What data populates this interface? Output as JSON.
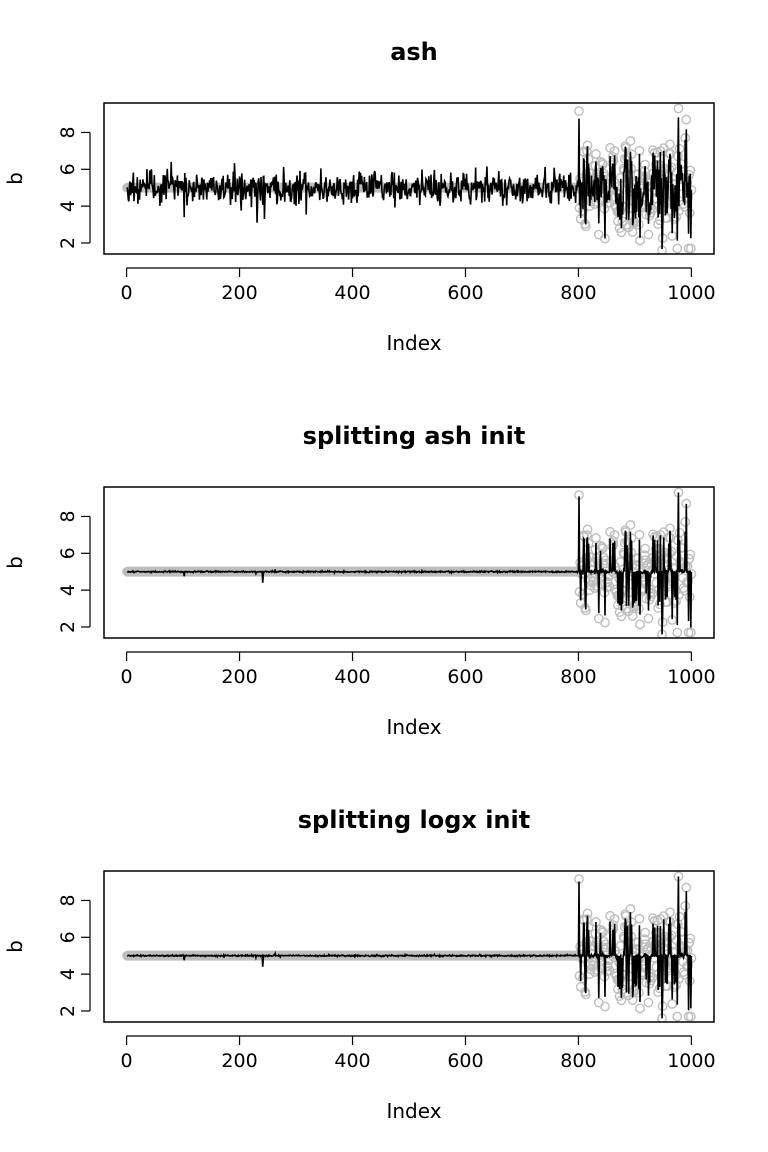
{
  "chart_data": [
    {
      "type": "scatter",
      "title": "ash",
      "xlabel": "Index",
      "ylabel": "b",
      "xlim": [
        -40,
        1040
      ],
      "ylim": [
        1.4,
        9.6
      ],
      "xticks": [
        "0",
        "200",
        "400",
        "600",
        "800",
        "1000"
      ],
      "yticks": [
        "2",
        "4",
        "6",
        "8"
      ],
      "n_points": 1000,
      "series": [
        {
          "name": "",
          "kind": "points",
          "color": "#bebebe",
          "description": "observed values: constant 5 for index 1-800, noisy between 1.7 and 9.3 for index 801-1000"
        },
        {
          "name": "",
          "kind": "line",
          "color": "#000000",
          "description": "noisy estimate around 5 (approx 3.1-6.4) for index 1-800, follows data for 801-1000"
        }
      ]
    },
    {
      "type": "scatter",
      "title": "splitting ash init",
      "xlabel": "Index",
      "ylabel": "b",
      "xlim": [
        -40,
        1040
      ],
      "ylim": [
        1.4,
        9.6
      ],
      "xticks": [
        "0",
        "200",
        "400",
        "600",
        "800",
        "1000"
      ],
      "yticks": [
        "2",
        "4",
        "6",
        "8"
      ],
      "n_points": 1000,
      "series": [
        {
          "name": "",
          "kind": "points",
          "color": "#bebebe",
          "description": "observed values: constant 5 for index 1-800, noisy between 1.7 and 9.3 for index 801-1000"
        },
        {
          "name": "",
          "kind": "line",
          "color": "#000000",
          "description": "estimate close to 5 for index 1-800 with small spikes near 100 and 240, follows data for 801-1000"
        }
      ]
    },
    {
      "type": "scatter",
      "title": "splitting logx init",
      "xlabel": "Index",
      "ylabel": "b",
      "xlim": [
        -40,
        1040
      ],
      "ylim": [
        1.4,
        9.6
      ],
      "xticks": [
        "0",
        "200",
        "400",
        "600",
        "800",
        "1000"
      ],
      "yticks": [
        "2",
        "4",
        "6",
        "8"
      ],
      "n_points": 1000,
      "series": [
        {
          "name": "",
          "kind": "points",
          "color": "#bebebe",
          "description": "observed values: constant 5 for index 1-800, noisy between 1.7 and 9.3 for index 801-1000"
        },
        {
          "name": "",
          "kind": "line",
          "color": "#000000",
          "description": "estimate close to 5 for index 1-800 with small spikes near 100 and 240, follows data for 801-1000"
        }
      ]
    }
  ]
}
